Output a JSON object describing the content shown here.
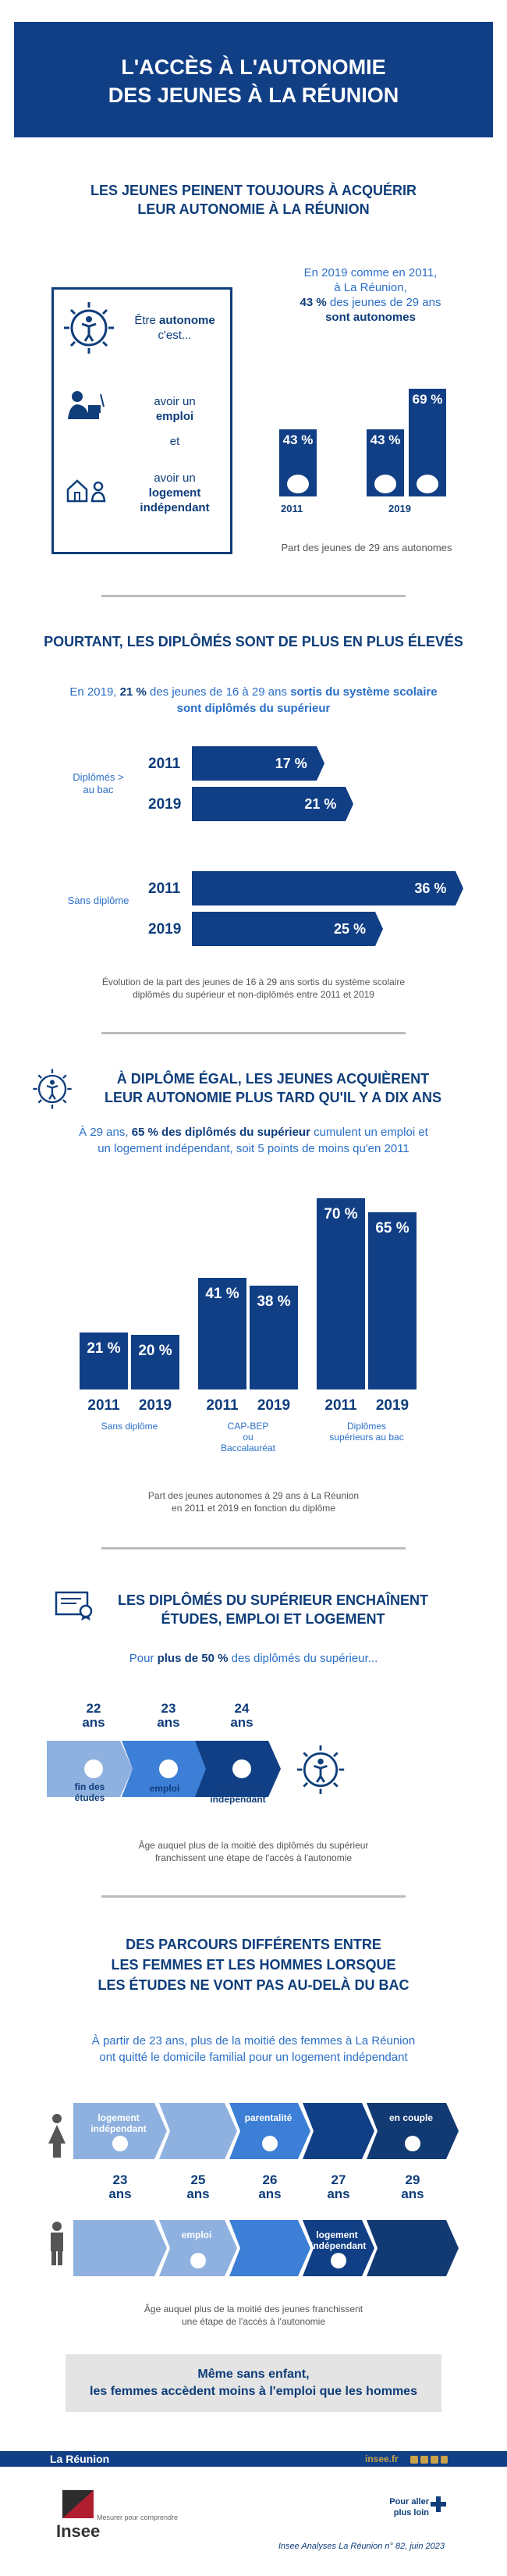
{
  "header": {
    "title_line1": "L'ACCÈS À L'AUTONOMIE",
    "title_line2": "DES JEUNES À LA RÉUNION"
  },
  "s1": {
    "title_line1": "LES JEUNES PEINENT TOUJOURS À ACQUÉRIR",
    "title_line2": "LEUR AUTONOMIE À LA RÉUNION",
    "box_l1a": "Être ",
    "box_l1b": "autonome",
    "box_l1c": "c'est...",
    "box_emp_a": "avoir un",
    "box_emp_b": "emploi",
    "box_et": "et",
    "box_log_a": "avoir un",
    "box_log_b": "logement",
    "box_log_c": "indépendant",
    "intro_l1": "En 2019 comme en 2011,",
    "intro_l2": "à La Réunion,",
    "intro_l3a": "43 %",
    "intro_l3b": " des jeunes de 29 ans",
    "intro_l4": "sont autonomes",
    "caption": "Part des jeunes de 29 ans autonomes",
    "chart_data": {
      "type": "bar",
      "bars": [
        {
          "year": "2011",
          "value": 43,
          "label": "43 %"
        },
        {
          "year": "2019",
          "value": 43,
          "label": "43 %"
        },
        {
          "year": "2019",
          "value": 69,
          "label": "69 %"
        }
      ],
      "year_labels": [
        "2011",
        "2019"
      ]
    }
  },
  "s2": {
    "title": "POURTANT, LES DIPLÔMÉS SONT DE PLUS EN PLUS ÉLEVÉS",
    "intro_l1a": "En 2019, ",
    "intro_l1b": "21 %",
    "intro_l1c": " des jeunes de 16 à 29 ans ",
    "intro_l1d": "sortis du système scolaire",
    "intro_l2": "sont diplômés du supérieur",
    "group1": "Diplômés > au bac",
    "group2": "Sans diplôme",
    "caption_l1": "Évolution de la part des jeunes de 16 à 29 ans sortis du système scolaire",
    "caption_l2": "diplômés du supérieur et non-diplômés entre 2011 et 2019",
    "chart_data": {
      "type": "bar",
      "rows": [
        {
          "group": "Diplômés > au bac",
          "year": "2011",
          "value": 17,
          "label": "17 %"
        },
        {
          "group": "Diplômés > au bac",
          "year": "2019",
          "value": 21,
          "label": "21 %"
        },
        {
          "group": "Sans diplôme",
          "year": "2011",
          "value": 36,
          "label": "36 %"
        },
        {
          "group": "Sans diplôme",
          "year": "2019",
          "value": 25,
          "label": "25 %"
        }
      ]
    }
  },
  "s3": {
    "title_l1": "À DIPLÔME ÉGAL, LES JEUNES ACQUIÈRENT",
    "title_l2": "LEUR AUTONOMIE PLUS TARD QU'IL Y A DIX ANS",
    "intro_l1a": "À 29 ans, ",
    "intro_l1b": "65 % des diplômés du supérieur",
    "intro_l1c": " cumulent un emploi et",
    "intro_l2": "un logement indépendant, soit 5 points de moins qu'en 2011",
    "caption_l1": "Part des jeunes autonomes à 29 ans à La Réunion",
    "caption_l2": "en 2011 et 2019 en fonction du diplôme",
    "chart_data": {
      "type": "bar",
      "categories": [
        "Sans diplôme",
        "CAP-BEP ou Baccalauréat",
        "Diplômes supérieurs au bac"
      ],
      "category_lines": [
        [
          "Sans diplôme"
        ],
        [
          "CAP-BEP",
          "ou",
          "Baccalauréat"
        ],
        [
          "Diplômes",
          "supérieurs au bac"
        ]
      ],
      "series": [
        {
          "name": "2011",
          "values": [
            21,
            41,
            70
          ],
          "labels": [
            "21 %",
            "41 %",
            "70 %"
          ]
        },
        {
          "name": "2019",
          "values": [
            20,
            38,
            65
          ],
          "labels": [
            "20 %",
            "38 %",
            "65 %"
          ]
        }
      ]
    }
  },
  "s4": {
    "title_l1": "LES DIPLÔMÉS DU SUPÉRIEUR ENCHAÎNENT",
    "title_l2": "ÉTUDES, EMPLOI ET LOGEMENT",
    "intro_a": "Pour ",
    "intro_b": "plus de 50 %",
    "intro_c": " des diplômés du supérieur...",
    "ages": [
      {
        "n": "22",
        "u": "ans"
      },
      {
        "n": "23",
        "u": "ans"
      },
      {
        "n": "24",
        "u": "ans"
      }
    ],
    "labels": [
      [
        "fin des",
        "études"
      ],
      [
        "emploi"
      ],
      [
        "logement",
        "indépendant"
      ]
    ],
    "caption_l1": "Âge auquel plus de la moitié des diplômés du supérieur",
    "caption_l2": "franchissent une étape de l'accès à l'autonomie"
  },
  "s5": {
    "title_l1": "DES PARCOURS DIFFÉRENTS ENTRE",
    "title_l2": "LES FEMMES ET LES HOMMES LORSQUE",
    "title_l3": "LES ÉTUDES NE VONT PAS AU-DELÀ DU BAC",
    "intro_l1": "À partir de 23 ans, plus de la moitié des femmes à La Réunion",
    "intro_l2": "ont quitté le domicile familial pour un logement indépendant",
    "women": [
      [
        "logement",
        "indépendant"
      ],
      [
        ""
      ],
      [
        "parentalité"
      ],
      [
        ""
      ],
      [
        "en couple"
      ]
    ],
    "men": [
      [
        ""
      ],
      [
        "emploi"
      ],
      [
        ""
      ],
      [
        "logement",
        "indépendant"
      ],
      [
        ""
      ]
    ],
    "ages": [
      {
        "n": "23",
        "u": "ans"
      },
      {
        "n": "25",
        "u": "ans"
      },
      {
        "n": "26",
        "u": "ans"
      },
      {
        "n": "27",
        "u": "ans"
      },
      {
        "n": "29",
        "u": "ans"
      }
    ],
    "caption_l1": "Âge auquel plus de la moitié des jeunes franchissent",
    "caption_l2": "une étape de l'accès à l'autonomie",
    "note_l1": "Même sans enfant,",
    "note_l2": "les femmes accèdent moins à l'emploi que les hommes"
  },
  "footer": {
    "region": "La Réunion",
    "site": "insee.fr",
    "brand": "Insee",
    "tagline": "Mesurer pour comprendre",
    "more_l1": "Pour aller",
    "more_l2": "plus loin",
    "ref": "Insee Analyses La Réunion n° 82, juin 2023"
  },
  "colors": {
    "navy": "#0e3d7a",
    "bar": "#113f86",
    "blue": "#2a6fc7",
    "light": "#8fb1df",
    "mid": "#3d7fd6",
    "grey": "#e4e4e4"
  }
}
